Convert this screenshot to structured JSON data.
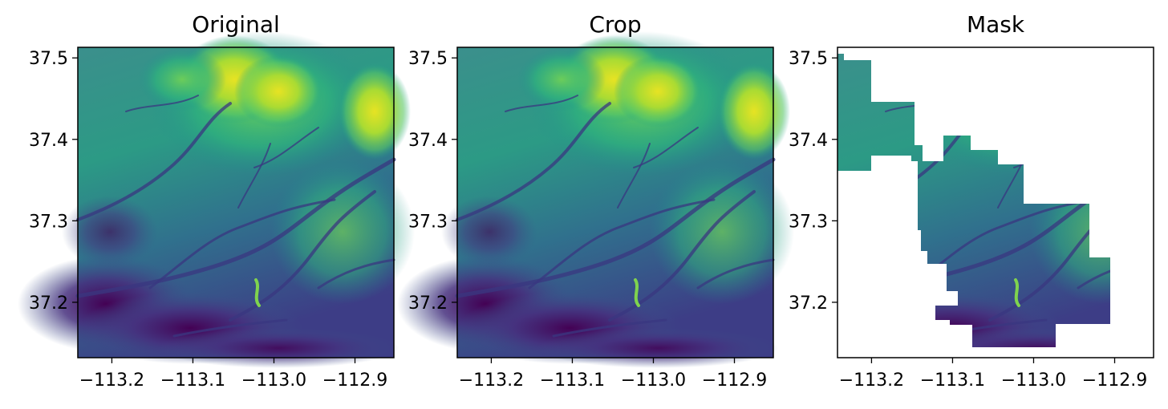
{
  "figure": {
    "panels": [
      {
        "title": "Original"
      },
      {
        "title": "Crop"
      },
      {
        "title": "Mask"
      }
    ]
  },
  "chart_data": [
    {
      "type": "heatmap",
      "title": "Original",
      "xlabel": "",
      "ylabel": "",
      "colormap": "viridis",
      "xlim": [
        -113.242,
        -112.852
      ],
      "ylim": [
        37.132,
        37.513
      ],
      "x_ticks": [
        -113.2,
        -113.1,
        -113.0,
        -112.9
      ],
      "y_ticks": [
        37.2,
        37.3,
        37.4,
        37.5
      ],
      "x_tick_labels": [
        "−113.2",
        "−113.1",
        "−113.0",
        "−112.9"
      ],
      "y_tick_labels": [
        "37.2",
        "37.3",
        "37.4",
        "37.5"
      ]
    },
    {
      "type": "heatmap",
      "title": "Crop",
      "xlabel": "",
      "ylabel": "",
      "colormap": "viridis",
      "xlim": [
        -113.242,
        -112.852
      ],
      "ylim": [
        37.132,
        37.513
      ],
      "x_ticks": [
        -113.2,
        -113.1,
        -113.0,
        -112.9
      ],
      "y_ticks": [
        37.2,
        37.3,
        37.4,
        37.5
      ],
      "x_tick_labels": [
        "−113.2",
        "−113.1",
        "−113.0",
        "−112.9"
      ],
      "y_tick_labels": [
        "37.2",
        "37.3",
        "37.4",
        "37.5"
      ]
    },
    {
      "type": "heatmap",
      "title": "Mask",
      "xlabel": "",
      "ylabel": "",
      "colormap": "viridis",
      "masked": true,
      "xlim": [
        -113.242,
        -112.852
      ],
      "ylim": [
        37.132,
        37.513
      ],
      "x_ticks": [
        -113.2,
        -113.1,
        -113.0,
        -112.9
      ],
      "y_ticks": [
        37.2,
        37.3,
        37.4,
        37.5
      ],
      "x_tick_labels": [
        "−113.2",
        "−113.1",
        "−113.0",
        "−112.9"
      ],
      "y_tick_labels": [
        "37.2",
        "37.3",
        "37.4",
        "37.5"
      ]
    }
  ]
}
